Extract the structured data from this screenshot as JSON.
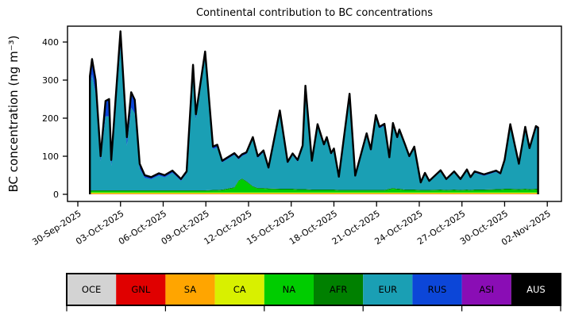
{
  "title": "Continental contribution to BC concentrations",
  "ylabel": "BC concentration (ng m⁻³)",
  "legend": {
    "items": [
      {
        "label": "OCE",
        "color": "#d3d3d3",
        "text_color": "#000000"
      },
      {
        "label": "GNL",
        "color": "#e00000",
        "text_color": "#000000"
      },
      {
        "label": "SA",
        "color": "#ffa500",
        "text_color": "#000000"
      },
      {
        "label": "CA",
        "color": "#d8f000",
        "text_color": "#000000"
      },
      {
        "label": "NA",
        "color": "#00cc00",
        "text_color": "#000000"
      },
      {
        "label": "AFR",
        "color": "#008000",
        "text_color": "#000000"
      },
      {
        "label": "EUR",
        "color": "#1a9fb4",
        "text_color": "#000000"
      },
      {
        "label": "RUS",
        "color": "#0c46d8",
        "text_color": "#000000"
      },
      {
        "label": "ASI",
        "color": "#8a0db5",
        "text_color": "#000000"
      },
      {
        "label": "AUS",
        "color": "#000000",
        "text_color": "#ffffff"
      }
    ]
  },
  "chart_data": {
    "type": "area",
    "stacked": true,
    "title": "Continental contribution to BC concentrations",
    "ylabel": "BC concentration (ng m⁻³)",
    "grid": false,
    "legend_position": "bottom-strip",
    "y_ticks": [
      0,
      100,
      200,
      300,
      400
    ],
    "ylim": [
      -19,
      442
    ],
    "x_tick_labels": [
      "30-Sep-2025",
      "03-Oct-2025",
      "06-Oct-2025",
      "09-Oct-2025",
      "12-Oct-2025",
      "15-Oct-2025",
      "18-Oct-2025",
      "21-Oct-2025",
      "24-Oct-2025",
      "27-Oct-2025",
      "30-Oct-2025",
      "02-Nov-2025"
    ],
    "x_tick_day_offsets": [
      0,
      3,
      6,
      9,
      12,
      15,
      18,
      21,
      24,
      27,
      30,
      33
    ],
    "x_unit": "days since 30-Sep-2025",
    "xlim_days": [
      -0.73,
      34.0
    ],
    "total_line_color": "#000000",
    "days": [
      0.85,
      1.0,
      1.25,
      1.6,
      1.95,
      2.2,
      2.35,
      3.0,
      3.45,
      3.75,
      4.0,
      4.35,
      4.7,
      5.15,
      5.7,
      6.1,
      6.65,
      7.25,
      7.65,
      8.1,
      8.3,
      8.95,
      9.5,
      9.8,
      10.15,
      11.0,
      11.3,
      11.55,
      11.85,
      12.3,
      12.65,
      13.05,
      13.4,
      14.2,
      14.75,
      15.1,
      15.45,
      15.8,
      16.0,
      16.45,
      16.85,
      17.3,
      17.5,
      17.8,
      18.0,
      18.35,
      19.1,
      19.5,
      20.3,
      20.6,
      20.95,
      21.2,
      21.55,
      21.9,
      22.15,
      22.45,
      22.6,
      23.0,
      23.3,
      23.65,
      24.1,
      24.4,
      24.7,
      25.5,
      25.9,
      26.45,
      26.9,
      27.35,
      27.6,
      27.9,
      28.55,
      29.4,
      29.7,
      30.0,
      30.4,
      31.0,
      31.45,
      31.75,
      32.2,
      32.35
    ],
    "series_order": [
      "OCE",
      "GNL",
      "SA",
      "CA",
      "NA",
      "AFR",
      "EUR",
      "RUS",
      "ASI",
      "AUS"
    ],
    "series": {
      "OCE": 0.5,
      "GNL": 0.5,
      "SA": 1.0,
      "CA": 2.5,
      "NA": [
        4,
        4,
        4,
        4,
        4,
        4,
        4,
        4,
        4,
        4,
        4,
        4,
        4,
        4,
        4,
        4,
        4,
        4,
        4,
        4,
        4,
        4,
        5,
        5,
        6,
        12,
        30,
        35,
        28,
        15,
        10,
        10,
        9,
        8,
        8,
        8,
        7,
        7,
        7,
        6,
        6,
        6,
        6,
        6,
        6,
        5,
        5,
        5,
        5,
        5,
        5,
        5,
        5,
        8,
        10,
        8,
        8,
        6,
        6,
        6,
        5,
        5,
        5,
        6,
        5,
        6,
        5,
        6,
        5,
        6,
        6,
        7,
        7,
        8,
        8,
        7,
        8,
        7,
        8,
        8
      ],
      "AFR": 2.0,
      "EUR": [
        264,
        304,
        254,
        77,
        194,
        194,
        64,
        379,
        117,
        217,
        202,
        57,
        33,
        29,
        39,
        34,
        46,
        25,
        44,
        314,
        187,
        349,
        107,
        112,
        71,
        85,
        55,
        59,
        71,
        124,
        79,
        94,
        50,
        200,
        66,
        88,
        72,
        110,
        266,
        71,
        166,
        114,
        133,
        91,
        103,
        31,
        247,
        34,
        144,
        102,
        192,
        161,
        169,
        78,
        166,
        131,
        151,
        114,
        83,
        108,
        17,
        41,
        21,
        47,
        26,
        44,
        26,
        49,
        31,
        44,
        36,
        45,
        38,
        72,
        165,
        63,
        158,
        104,
        160,
        156
      ],
      "RUS": [
        35,
        40,
        35,
        12,
        40,
        45,
        15,
        38,
        22,
        40,
        35,
        12,
        6,
        5,
        5,
        5,
        5,
        4,
        5,
        15,
        12,
        15,
        6,
        6,
        4,
        4,
        4,
        4,
        4,
        4,
        4,
        4,
        4,
        5,
        4,
        4,
        4,
        4,
        5,
        4,
        5,
        4,
        4,
        4,
        4,
        3,
        5,
        3,
        4,
        4,
        4,
        4,
        4,
        4,
        4,
        4,
        4,
        4,
        4,
        4,
        2,
        3,
        2,
        3,
        2,
        3,
        2,
        3,
        2,
        3,
        3,
        3,
        3,
        3,
        4,
        3,
        4,
        3,
        4,
        4
      ],
      "ASI": 0.5,
      "AUS": 0.2
    },
    "colors": {
      "OCE": "#d3d3d3",
      "GNL": "#e00000",
      "SA": "#ffa500",
      "CA": "#d8f000",
      "NA": "#00cc00",
      "AFR": "#008000",
      "EUR": "#1a9fb4",
      "RUS": "#0c46d8",
      "ASI": "#8a0db5",
      "AUS": "#000000"
    }
  }
}
